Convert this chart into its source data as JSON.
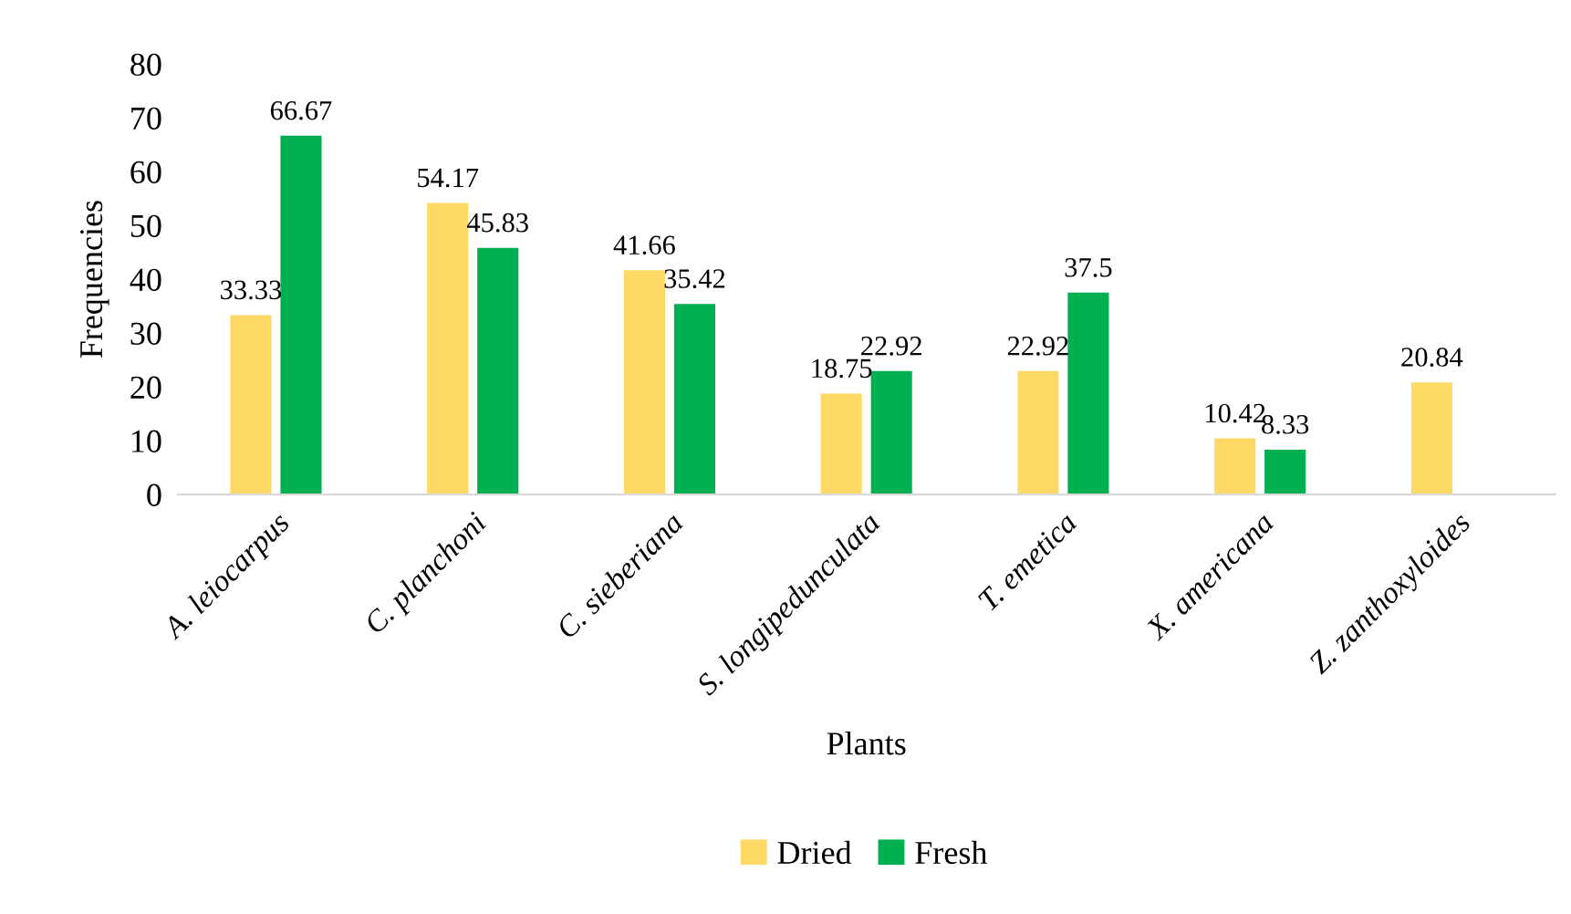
{
  "chart_data": {
    "type": "bar",
    "xlabel": "Plants",
    "ylabel": "Frequencies",
    "categories": [
      "A. leiocarpus",
      "C. planchoni",
      "C. sieberiana",
      "S. longipedunculata",
      "T. emetica",
      "X. americana",
      "Z. zanthoxyloides"
    ],
    "series": [
      {
        "name": "Dried",
        "color": "#ffd966",
        "values": [
          33.33,
          54.17,
          41.66,
          18.75,
          22.92,
          10.42,
          20.84
        ]
      },
      {
        "name": "Fresh",
        "color": "#00b050",
        "values": [
          66.67,
          45.83,
          35.42,
          22.92,
          37.5,
          8.33,
          null
        ]
      }
    ],
    "ylim": [
      0,
      80
    ],
    "yticks": [
      0,
      10,
      20,
      30,
      40,
      50,
      60,
      70,
      80
    ],
    "grid": false,
    "legend": "bottom",
    "data_labels": true
  }
}
